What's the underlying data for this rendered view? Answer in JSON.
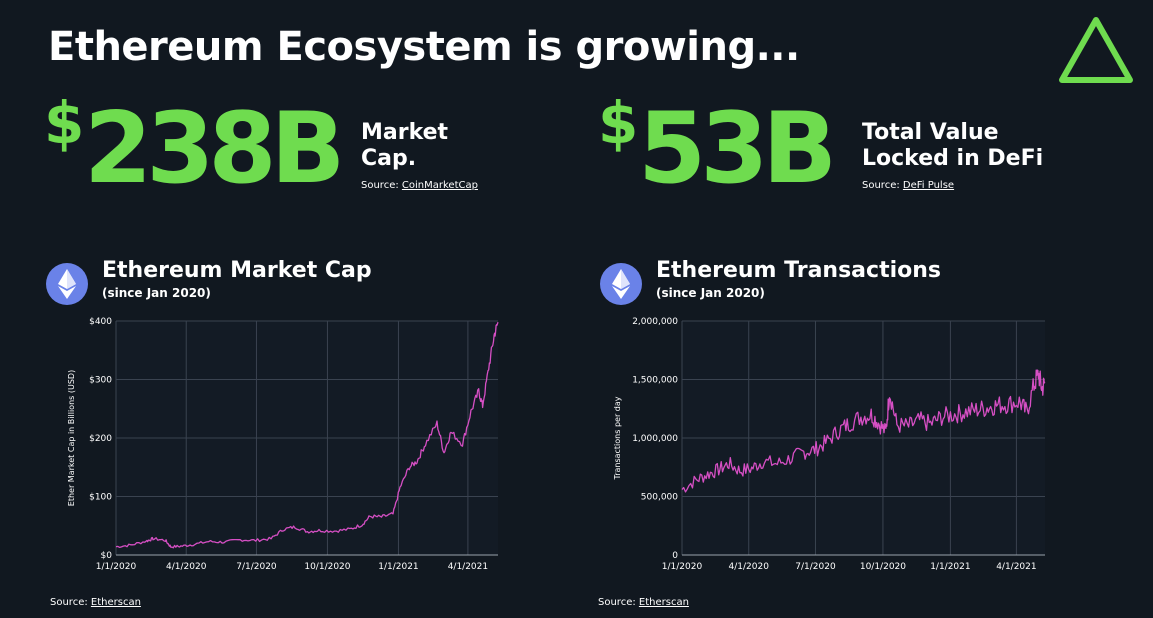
{
  "page": {
    "title": "Ethereum Ecosystem is growing..."
  },
  "stats": [
    {
      "currency": "$",
      "value": "238B",
      "label_line1": "Market",
      "label_line2": "Cap.",
      "source_prefix": "Source: ",
      "source_name": "CoinMarketCap"
    },
    {
      "currency": "$",
      "value": "53B",
      "label_line1": "Total Value",
      "label_line2": "Locked in DeFi",
      "source_prefix": "Source: ",
      "source_name": "DeFi Pulse"
    }
  ],
  "charts_meta": [
    {
      "title": "Ethereum Market Cap",
      "subtitle": "(since Jan 2020)",
      "source_prefix": "Source: ",
      "source_name": "Etherscan"
    },
    {
      "title": "Ethereum Transactions",
      "subtitle": "(since Jan 2020)",
      "source_prefix": "Source: ",
      "source_name": "Etherscan"
    }
  ],
  "colors": {
    "accent": "#6fdc4f",
    "series": "#d64fc4",
    "eth_circle": "#6a82e8",
    "background": "#111820"
  },
  "chart_data": [
    {
      "type": "line",
      "title": "Ethereum Market Cap",
      "subtitle": "(since Jan 2020)",
      "ylabel": "Ether Market Cap in Billions (USD)",
      "xlabel": "",
      "x_ticks": [
        "1/1/2020",
        "4/1/2020",
        "7/1/2020",
        "10/1/2020",
        "1/1/2021",
        "4/1/2021"
      ],
      "y_ticks": [
        "$0",
        "$100",
        "$200",
        "$300",
        "$400"
      ],
      "ylim": [
        0,
        400
      ],
      "xlim": [
        "2020-01-01",
        "2021-05-10"
      ],
      "grid": true,
      "series": [
        {
          "values": [
            [
              "2020-01-01",
              14
            ],
            [
              "2020-01-20",
              17
            ],
            [
              "2020-02-10",
              24
            ],
            [
              "2020-02-18",
              28
            ],
            [
              "2020-03-05",
              25
            ],
            [
              "2020-03-12",
              14
            ],
            [
              "2020-03-25",
              15
            ],
            [
              "2020-04-10",
              18
            ],
            [
              "2020-04-30",
              23
            ],
            [
              "2020-05-20",
              22
            ],
            [
              "2020-06-10",
              26
            ],
            [
              "2020-06-30",
              25
            ],
            [
              "2020-07-20",
              28
            ],
            [
              "2020-08-05",
              44
            ],
            [
              "2020-08-20",
              48
            ],
            [
              "2020-09-05",
              40
            ],
            [
              "2020-09-20",
              42
            ],
            [
              "2020-10-10",
              41
            ],
            [
              "2020-10-30",
              44
            ],
            [
              "2020-11-15",
              52
            ],
            [
              "2020-11-25",
              66
            ],
            [
              "2020-12-10",
              65
            ],
            [
              "2020-12-25",
              70
            ],
            [
              "2021-01-03",
              115
            ],
            [
              "2021-01-15",
              150
            ],
            [
              "2021-01-25",
              160
            ],
            [
              "2021-02-05",
              190
            ],
            [
              "2021-02-20",
              225
            ],
            [
              "2021-03-01",
              175
            ],
            [
              "2021-03-10",
              210
            ],
            [
              "2021-03-25",
              190
            ],
            [
              "2021-04-05",
              245
            ],
            [
              "2021-04-15",
              280
            ],
            [
              "2021-04-20",
              255
            ],
            [
              "2021-04-28",
              320
            ],
            [
              "2021-05-05",
              375
            ],
            [
              "2021-05-10",
              398
            ]
          ]
        }
      ]
    },
    {
      "type": "line",
      "title": "Ethereum Transactions",
      "subtitle": "(since Jan 2020)",
      "ylabel": "Transactions per day",
      "xlabel": "",
      "x_ticks": [
        "1/1/2020",
        "4/1/2020",
        "7/1/2020",
        "10/1/2020",
        "1/1/2021",
        "4/1/2021"
      ],
      "y_ticks": [
        "0",
        "500,000",
        "1,000,000",
        "1,500,000",
        "2,000,000"
      ],
      "ylim": [
        0,
        2000000
      ],
      "xlim": [
        "2020-01-01",
        "2021-05-10"
      ],
      "grid": true,
      "series": [
        {
          "values": [
            [
              "2020-01-01",
              560000
            ],
            [
              "2020-01-20",
              640000
            ],
            [
              "2020-02-05",
              690000
            ],
            [
              "2020-02-20",
              730000
            ],
            [
              "2020-03-05",
              780000
            ],
            [
              "2020-03-20",
              720000
            ],
            [
              "2020-04-05",
              740000
            ],
            [
              "2020-04-20",
              800000
            ],
            [
              "2020-05-10",
              780000
            ],
            [
              "2020-05-30",
              830000
            ],
            [
              "2020-06-15",
              880000
            ],
            [
              "2020-06-30",
              900000
            ],
            [
              "2020-07-15",
              960000
            ],
            [
              "2020-08-01",
              1060000
            ],
            [
              "2020-08-15",
              1120000
            ],
            [
              "2020-09-01",
              1180000
            ],
            [
              "2020-09-15",
              1200000
            ],
            [
              "2020-09-25",
              1130000
            ],
            [
              "2020-10-05",
              1050000
            ],
            [
              "2020-10-10",
              1400000
            ],
            [
              "2020-10-20",
              1110000
            ],
            [
              "2020-11-05",
              1100000
            ],
            [
              "2020-11-20",
              1150000
            ],
            [
              "2020-12-05",
              1120000
            ],
            [
              "2020-12-20",
              1180000
            ],
            [
              "2021-01-05",
              1200000
            ],
            [
              "2021-01-20",
              1220000
            ],
            [
              "2021-02-05",
              1240000
            ],
            [
              "2021-02-20",
              1260000
            ],
            [
              "2021-03-05",
              1280000
            ],
            [
              "2021-03-20",
              1290000
            ],
            [
              "2021-04-05",
              1310000
            ],
            [
              "2021-04-15",
              1220000
            ],
            [
              "2021-04-25",
              1450000
            ],
            [
              "2021-05-01",
              1550000
            ],
            [
              "2021-05-06",
              1420000
            ],
            [
              "2021-05-10",
              1480000
            ]
          ]
        }
      ]
    }
  ]
}
